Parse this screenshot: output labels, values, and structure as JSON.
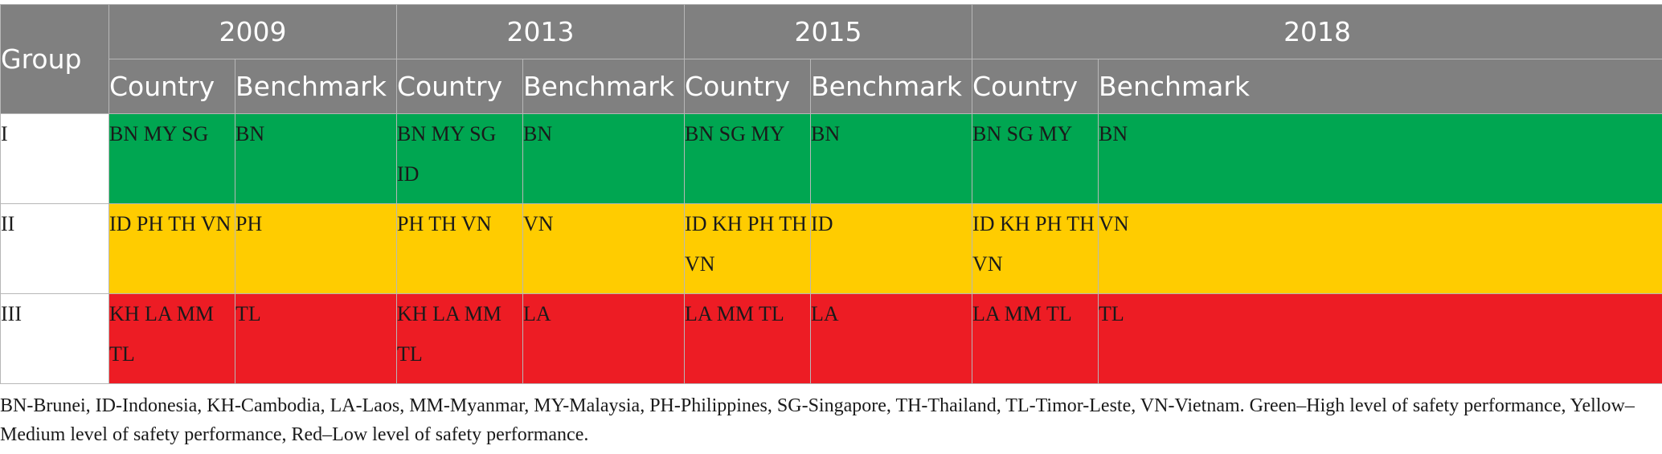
{
  "table": {
    "group_header": "Group",
    "years": [
      "2009",
      "2013",
      "2015",
      "2018"
    ],
    "sub_headers": {
      "country": "Country",
      "benchmark": "Benchmark"
    },
    "rows": [
      {
        "group": "I",
        "color": "#00a651",
        "cells": [
          "BN MY SG",
          "BN",
          "BN MY SG ID",
          "BN",
          "BN SG MY",
          "BN",
          "BN SG MY",
          "BN"
        ]
      },
      {
        "group": "II",
        "color": "#ffcc00",
        "cells": [
          "ID PH TH VN",
          "PH",
          "PH TH VN",
          "VN",
          "ID KH PH TH VN",
          "ID",
          "ID KH PH TH VN",
          "VN"
        ]
      },
      {
        "group": "III",
        "color": "#ed1c24",
        "cells": [
          "KH LA MM TL",
          "TL",
          "KH LA MM TL",
          "LA",
          "LA MM TL",
          "LA",
          "LA MM TL",
          "TL"
        ]
      }
    ]
  },
  "footnote": "BN-Brunei, ID-Indonesia, KH-Cambodia, LA-Laos, MM-Myanmar, MY-Malaysia, PH-Philippines, SG-Singapore, TH-Thailand, TL-Timor-Leste, VN-Vietnam. Green–High level of safety performance, Yellow–Medium level of safety performance, Red–Low level of safety performance.",
  "colors": {
    "header_bg": "#808080",
    "green": "#00a651",
    "yellow": "#ffcc00",
    "red": "#ed1c24"
  }
}
